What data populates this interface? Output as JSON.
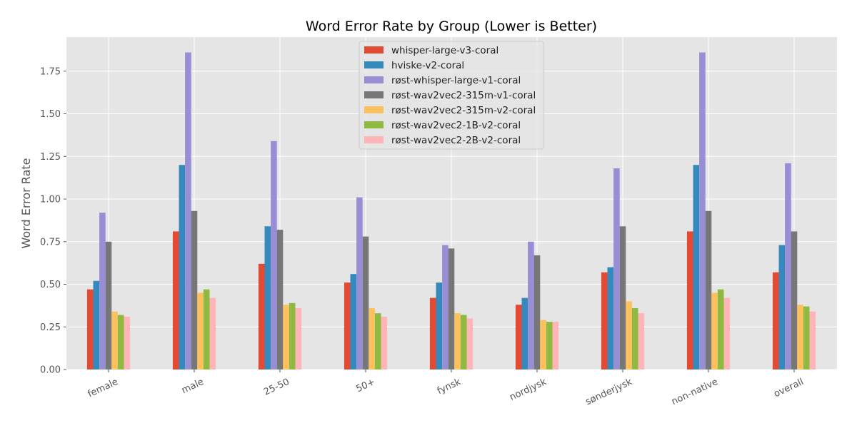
{
  "chart_data": {
    "type": "bar",
    "title": "Word Error Rate by Group (Lower is Better)",
    "xlabel": "",
    "ylabel": "Word Error Rate",
    "ylim": [
      0,
      1.95
    ],
    "yticks": [
      "0.00",
      "0.25",
      "0.50",
      "0.75",
      "1.00",
      "1.25",
      "1.50",
      "1.75"
    ],
    "grid": true,
    "legend_position": "top-center",
    "categories": [
      "female",
      "male",
      "25-50",
      "50+",
      "fynsk",
      "nordjysk",
      "sønderjysk",
      "non-native",
      "overall"
    ],
    "series": [
      {
        "name": "whisper-large-v3-coral",
        "color": "#E24A33",
        "values": [
          0.47,
          0.81,
          0.62,
          0.51,
          0.42,
          0.38,
          0.57,
          0.81,
          0.57
        ]
      },
      {
        "name": "hviske-v2-coral",
        "color": "#348ABD",
        "values": [
          0.52,
          1.2,
          0.84,
          0.56,
          0.51,
          0.42,
          0.6,
          1.2,
          0.73
        ]
      },
      {
        "name": "røst-whisper-large-v1-coral",
        "color": "#988ED5",
        "values": [
          0.92,
          1.86,
          1.34,
          1.01,
          0.73,
          0.75,
          1.18,
          1.86,
          1.21
        ]
      },
      {
        "name": "røst-wav2vec2-315m-v1-coral",
        "color": "#777777",
        "values": [
          0.75,
          0.93,
          0.82,
          0.78,
          0.71,
          0.67,
          0.84,
          0.93,
          0.81
        ]
      },
      {
        "name": "røst-wav2vec2-315m-v2-coral",
        "color": "#FBC15E",
        "values": [
          0.34,
          0.45,
          0.38,
          0.36,
          0.33,
          0.29,
          0.4,
          0.45,
          0.38
        ]
      },
      {
        "name": "røst-wav2vec2-1B-v2-coral",
        "color": "#8EBA42",
        "values": [
          0.32,
          0.47,
          0.39,
          0.33,
          0.32,
          0.28,
          0.36,
          0.47,
          0.37
        ]
      },
      {
        "name": "røst-wav2vec2-2B-v2-coral",
        "color": "#FFB5B8",
        "values": [
          0.31,
          0.42,
          0.36,
          0.31,
          0.3,
          0.28,
          0.33,
          0.42,
          0.34
        ]
      }
    ]
  }
}
